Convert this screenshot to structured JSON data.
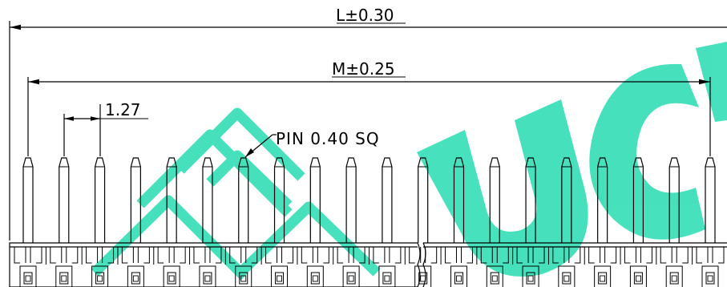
{
  "dimensions": {
    "overall_length": "L±0.30",
    "pin_span": "M±0.25",
    "pitch": "1.27",
    "pin_callout": "PIN 0.40 SQ"
  },
  "pin_count": 20,
  "colors": {
    "line": "#000000",
    "watermark": "#3de0b9",
    "background": "#ffffff"
  },
  "watermark": {
    "text": "UCI",
    "note": "stylized logo watermark"
  }
}
